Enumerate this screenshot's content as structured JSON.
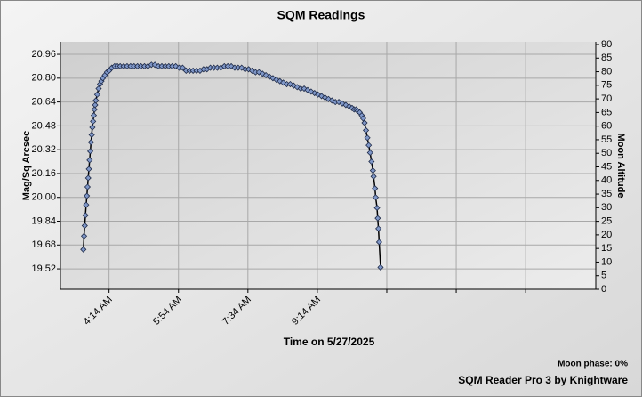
{
  "chart_data": {
    "type": "scatter",
    "title": "SQM Readings",
    "y_label": "Mag/Sq Arcsec",
    "y2_label": "Moon Altitude",
    "x_label": "Time on 5/27/2025",
    "annotations": [
      "Moon phase: 0%",
      "SQM Reader Pro 3 by Knightware"
    ],
    "xlim": [
      "3:04 AM",
      "3:55 PM"
    ],
    "xticks": [
      "4:14 AM",
      "5:54 AM",
      "7:34 AM",
      "9:14 AM",
      {
        "value": "10:54 AM",
        "label": null
      },
      {
        "value": "12:34 PM",
        "label": null
      },
      {
        "value": "2:14 PM",
        "label": null
      }
    ],
    "ylim": [
      19.383,
      21.026
    ],
    "yticks": [
      19.52,
      19.68,
      19.84,
      {
        "value": 20.0,
        "label": "20.00"
      },
      20.16,
      20.32,
      20.48,
      20.64,
      {
        "value": 20.8,
        "label": "20.80"
      },
      20.96
    ],
    "y2lim": [
      0,
      90
    ],
    "y2ticks": [
      0,
      5,
      10,
      15,
      20,
      25,
      30,
      35,
      40,
      45,
      50,
      55,
      60,
      65,
      70,
      75,
      80,
      85,
      90
    ],
    "grid": true,
    "series": [
      {
        "name": "SQM",
        "color": "#7f97c8",
        "x": [
          "3:37 AM",
          "3:38 AM",
          "3:39 AM",
          "3:40 AM",
          "3:41 AM",
          "3:42 AM",
          "3:43 AM",
          "3:44 AM",
          "3:45 AM",
          "3:46 AM",
          "3:47 AM",
          "3:48 AM",
          "3:49 AM",
          "3:50 AM",
          "3:51 AM",
          "3:52 AM",
          "3:53 AM",
          "3:54 AM",
          "3:55 AM",
          "3:57 AM",
          "3:59 AM",
          "4:01 AM",
          "4:03 AM",
          "4:05 AM",
          "4:08 AM",
          "4:11 AM",
          "4:14 AM",
          "4:18 AM",
          "4:22 AM",
          "4:26 AM",
          "4:30 AM",
          "4:35 AM",
          "4:40 AM",
          "4:45 AM",
          "4:50 AM",
          "4:55 AM",
          "5:00 AM",
          "5:05 AM",
          "5:10 AM",
          "5:15 AM",
          "5:20 AM",
          "5:25 AM",
          "5:30 AM",
          "5:35 AM",
          "5:40 AM",
          "5:45 AM",
          "5:50 AM",
          "5:55 AM",
          "6:00 AM",
          "6:05 AM",
          "6:10 AM",
          "6:15 AM",
          "6:20 AM",
          "6:25 AM",
          "6:30 AM",
          "6:35 AM",
          "6:40 AM",
          "6:45 AM",
          "6:50 AM",
          "6:55 AM",
          "7:00 AM",
          "7:05 AM",
          "7:10 AM",
          "7:15 AM",
          "7:20 AM",
          "7:25 AM",
          "7:30 AM",
          "7:35 AM",
          "7:40 AM",
          "7:45 AM",
          "7:50 AM",
          "7:55 AM",
          "8:00 AM",
          "8:05 AM",
          "8:10 AM",
          "8:15 AM",
          "8:20 AM",
          "8:25 AM",
          "8:30 AM",
          "8:35 AM",
          "8:40 AM",
          "8:45 AM",
          "8:50 AM",
          "8:55 AM",
          "9:00 AM",
          "9:05 AM",
          "9:10 AM",
          "9:15 AM",
          "9:20 AM",
          "9:25 AM",
          "9:30 AM",
          "9:35 AM",
          "9:40 AM",
          "9:45 AM",
          "9:50 AM",
          "9:55 AM",
          "10:00 AM",
          "10:04 AM",
          "10:07 AM",
          "10:10 AM",
          "10:12 AM",
          "10:15 AM",
          "10:18 AM",
          "10:20 AM",
          "10:22 AM",
          "10:24 AM",
          "10:26 AM",
          "10:28 AM",
          "10:30 AM",
          "10:32 AM",
          "10:34 AM",
          "10:35 AM",
          "10:37 AM",
          "10:38 AM",
          "10:40 AM",
          "10:41 AM",
          "10:42 AM",
          "10:43 AM",
          "10:45 AM"
        ],
        "values": [
          19.65,
          19.74,
          19.81,
          19.88,
          19.95,
          20.01,
          20.07,
          20.13,
          20.19,
          20.25,
          20.31,
          20.37,
          20.42,
          20.47,
          20.51,
          20.55,
          20.59,
          20.62,
          20.65,
          20.69,
          20.73,
          20.76,
          20.78,
          20.8,
          20.82,
          20.84,
          20.85,
          20.87,
          20.88,
          20.88,
          20.88,
          20.88,
          20.88,
          20.88,
          20.88,
          20.88,
          20.88,
          20.88,
          20.88,
          20.89,
          20.89,
          20.88,
          20.88,
          20.88,
          20.88,
          20.88,
          20.88,
          20.87,
          20.87,
          20.85,
          20.85,
          20.85,
          20.85,
          20.85,
          20.86,
          20.86,
          20.87,
          20.87,
          20.87,
          20.87,
          20.88,
          20.88,
          20.88,
          20.87,
          20.87,
          20.87,
          20.86,
          20.86,
          20.85,
          20.84,
          20.84,
          20.83,
          20.82,
          20.81,
          20.8,
          20.79,
          20.78,
          20.77,
          20.76,
          20.76,
          20.75,
          20.74,
          20.73,
          20.73,
          20.72,
          20.71,
          20.7,
          20.69,
          20.68,
          20.67,
          20.66,
          20.65,
          20.64,
          20.64,
          20.63,
          20.62,
          20.61,
          20.6,
          20.59,
          20.59,
          20.58,
          20.57,
          20.55,
          20.53,
          20.5,
          20.45,
          20.4,
          20.35,
          20.3,
          20.24,
          20.18,
          20.14,
          20.06,
          20.0,
          19.93,
          19.86,
          19.79,
          19.7,
          19.53
        ]
      }
    ]
  }
}
